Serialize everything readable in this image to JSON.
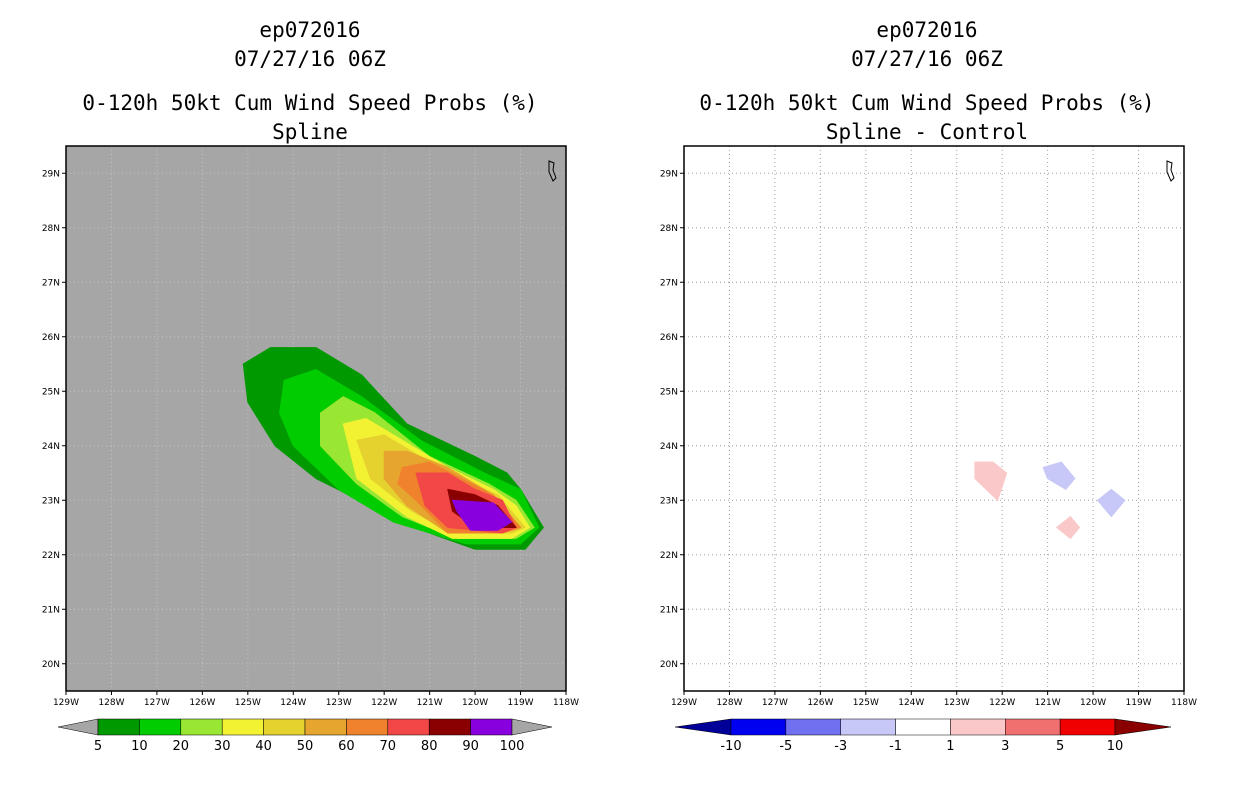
{
  "colors": {
    "background_left": "#a6a6a6",
    "left_scale": [
      "#009900",
      "#00cc00",
      "#99e633",
      "#f2f233",
      "#e6d22e",
      "#e6a52e",
      "#f0822e",
      "#f24747",
      "#8a0000",
      "#8800dd"
    ],
    "right_scale": [
      "#000099",
      "#0000f0",
      "#7070f0",
      "#c8c8f8",
      "#ffffff",
      "#fac8c8",
      "#f07070",
      "#f00000",
      "#8a0000"
    ]
  },
  "panels": [
    {
      "title": [
        "ep072016",
        "07/27/16 06Z",
        "0-120h 50kt Cum Wind Speed Probs (%)",
        "Spline"
      ],
      "y_ticks": [
        "29N",
        "28N",
        "27N",
        "26N",
        "25N",
        "24N",
        "23N",
        "22N",
        "21N",
        "20N"
      ],
      "x_ticks": [
        "129W",
        "128W",
        "127W",
        "126W",
        "125W",
        "124W",
        "123W",
        "122W",
        "121W",
        "120W",
        "119W",
        "118W"
      ],
      "colorbar_labels": [
        "5",
        "10",
        "20",
        "30",
        "40",
        "50",
        "60",
        "70",
        "80",
        "90",
        "100"
      ]
    },
    {
      "title": [
        "ep072016",
        "07/27/16 06Z",
        "0-120h 50kt Cum Wind Speed Probs (%)",
        "Spline - Control"
      ],
      "y_ticks": [
        "29N",
        "28N",
        "27N",
        "26N",
        "25N",
        "24N",
        "23N",
        "22N",
        "21N",
        "20N"
      ],
      "x_ticks": [
        "129W",
        "128W",
        "127W",
        "126W",
        "125W",
        "124W",
        "123W",
        "122W",
        "121W",
        "120W",
        "119W",
        "118W"
      ],
      "colorbar_labels": [
        "-10",
        "-5",
        "-3",
        "-1",
        "1",
        "3",
        "5",
        "10"
      ]
    }
  ],
  "chart_data": [
    {
      "type": "heatmap",
      "title": "0-120h 50kt Cum Wind Speed Probs (%)",
      "subtitle": "Spline",
      "storm": "ep072016",
      "time": "07/27/16 06Z",
      "xlim": [
        -129,
        -118
      ],
      "ylim": [
        19.5,
        29.5
      ],
      "contour_levels": [
        5,
        10,
        20,
        30,
        40,
        50,
        60,
        70,
        80,
        90,
        100
      ],
      "contours": [
        {
          "level": 5,
          "points": [
            [
              -125.1,
              25.5
            ],
            [
              -124.5,
              25.8
            ],
            [
              -123.5,
              25.8
            ],
            [
              -122.5,
              25.3
            ],
            [
              -121.5,
              24.4
            ],
            [
              -120.0,
              23.8
            ],
            [
              -119.3,
              23.5
            ],
            [
              -119.0,
              23.2
            ],
            [
              -118.5,
              22.5
            ],
            [
              -118.9,
              22.1
            ],
            [
              -120.0,
              22.1
            ],
            [
              -121.0,
              22.4
            ],
            [
              -122.3,
              22.9
            ],
            [
              -123.5,
              23.4
            ],
            [
              -124.4,
              24.0
            ],
            [
              -125.0,
              24.8
            ]
          ]
        },
        {
          "level": 10,
          "points": [
            [
              -124.2,
              25.2
            ],
            [
              -123.5,
              25.4
            ],
            [
              -122.5,
              24.9
            ],
            [
              -121.2,
              24.1
            ],
            [
              -119.8,
              23.5
            ],
            [
              -119.0,
              23.2
            ],
            [
              -118.6,
              22.5
            ],
            [
              -119.0,
              22.2
            ],
            [
              -120.2,
              22.2
            ],
            [
              -121.8,
              22.6
            ],
            [
              -123.0,
              23.2
            ],
            [
              -124.0,
              24.0
            ],
            [
              -124.3,
              24.6
            ]
          ]
        },
        {
          "level": 20,
          "points": [
            [
              -123.4,
              24.6
            ],
            [
              -122.9,
              24.9
            ],
            [
              -122.2,
              24.6
            ],
            [
              -121.0,
              23.8
            ],
            [
              -119.7,
              23.3
            ],
            [
              -119.1,
              23.0
            ],
            [
              -118.7,
              22.5
            ],
            [
              -119.1,
              22.3
            ],
            [
              -120.4,
              22.3
            ],
            [
              -121.6,
              22.7
            ],
            [
              -122.6,
              23.3
            ],
            [
              -123.4,
              24.0
            ]
          ]
        },
        {
          "level": 30,
          "points": [
            [
              -122.9,
              24.4
            ],
            [
              -122.4,
              24.5
            ],
            [
              -121.6,
              24.1
            ],
            [
              -120.6,
              23.6
            ],
            [
              -119.6,
              23.2
            ],
            [
              -119.1,
              22.9
            ],
            [
              -118.8,
              22.5
            ],
            [
              -119.2,
              22.3
            ],
            [
              -120.5,
              22.3
            ],
            [
              -121.5,
              22.7
            ],
            [
              -122.6,
              23.4
            ]
          ]
        },
        {
          "level": 40,
          "points": [
            [
              -122.6,
              24.1
            ],
            [
              -122.0,
              24.2
            ],
            [
              -121.2,
              23.8
            ],
            [
              -120.3,
              23.4
            ],
            [
              -119.5,
              23.1
            ],
            [
              -118.9,
              22.5
            ],
            [
              -119.2,
              22.4
            ],
            [
              -120.5,
              22.4
            ],
            [
              -121.4,
              22.8
            ],
            [
              -122.3,
              23.4
            ]
          ]
        },
        {
          "level": 50,
          "points": [
            [
              -122.0,
              23.9
            ],
            [
              -121.5,
              23.9
            ],
            [
              -120.6,
              23.6
            ],
            [
              -119.8,
              23.2
            ],
            [
              -119.0,
              22.5
            ],
            [
              -119.4,
              22.4
            ],
            [
              -120.6,
              22.4
            ],
            [
              -121.5,
              22.9
            ],
            [
              -122.0,
              23.4
            ]
          ]
        },
        {
          "level": 60,
          "points": [
            [
              -121.6,
              23.6
            ],
            [
              -121.0,
              23.7
            ],
            [
              -120.3,
              23.4
            ],
            [
              -119.6,
              23.1
            ],
            [
              -119.0,
              22.5
            ],
            [
              -119.4,
              22.4
            ],
            [
              -120.6,
              22.4
            ],
            [
              -121.3,
              23.0
            ],
            [
              -121.7,
              23.3
            ]
          ]
        },
        {
          "level": 70,
          "points": [
            [
              -121.3,
              23.5
            ],
            [
              -120.6,
              23.5
            ],
            [
              -120.0,
              23.2
            ],
            [
              -119.4,
              23.0
            ],
            [
              -119.1,
              22.5
            ],
            [
              -119.4,
              22.4
            ],
            [
              -120.6,
              22.5
            ],
            [
              -121.1,
              22.9
            ]
          ]
        },
        {
          "level": 80,
          "points": [
            [
              -120.6,
              23.2
            ],
            [
              -120.0,
              23.1
            ],
            [
              -119.5,
              22.9
            ],
            [
              -119.1,
              22.5
            ],
            [
              -120.0,
              22.5
            ],
            [
              -120.5,
              22.8
            ]
          ]
        },
        {
          "level": 90,
          "points": [
            [
              -120.5,
              23.0
            ],
            [
              -119.6,
              22.95
            ],
            [
              -119.2,
              22.6
            ],
            [
              -119.5,
              22.45
            ],
            [
              -120.1,
              22.45
            ],
            [
              -120.4,
              22.8
            ]
          ]
        }
      ]
    },
    {
      "type": "heatmap",
      "title": "0-120h 50kt Cum Wind Speed Probs (%)",
      "subtitle": "Spline - Control",
      "storm": "ep072016",
      "time": "07/27/16 06Z",
      "xlim": [
        -129,
        -118
      ],
      "ylim": [
        19.5,
        29.5
      ],
      "contour_levels": [
        -10,
        -5,
        -3,
        -1,
        1,
        3,
        5,
        10
      ],
      "grid": true,
      "regions": [
        {
          "range": [
            1,
            3
          ],
          "points": [
            [
              -122.6,
              23.7
            ],
            [
              -122.2,
              23.7
            ],
            [
              -121.9,
              23.5
            ],
            [
              -122.1,
              23.0
            ],
            [
              -122.6,
              23.4
            ]
          ]
        },
        {
          "range": [
            -3,
            -1
          ],
          "points": [
            [
              -121.1,
              23.6
            ],
            [
              -120.7,
              23.7
            ],
            [
              -120.4,
              23.4
            ],
            [
              -120.6,
              23.2
            ],
            [
              -121.0,
              23.4
            ]
          ]
        },
        {
          "range": [
            -3,
            -1
          ],
          "points": [
            [
              -119.6,
              23.2
            ],
            [
              -119.3,
              23.0
            ],
            [
              -119.6,
              22.7
            ],
            [
              -119.9,
              23.0
            ]
          ]
        },
        {
          "range": [
            1,
            3
          ],
          "points": [
            [
              -120.5,
              22.7
            ],
            [
              -120.3,
              22.5
            ],
            [
              -120.5,
              22.3
            ],
            [
              -120.8,
              22.5
            ]
          ]
        }
      ]
    }
  ]
}
